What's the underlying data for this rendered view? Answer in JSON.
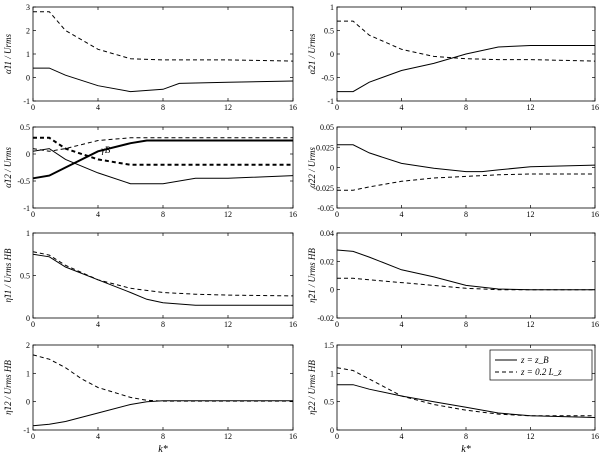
{
  "legend": {
    "entries": [
      {
        "label": "z = z_B",
        "style": "solid"
      },
      {
        "label": "z = 0.2 L_z",
        "style": "dashed"
      }
    ]
  },
  "chart_data": [
    {
      "type": "line",
      "ylabel": "α̃11 / Urms",
      "xlim": [
        0,
        16
      ],
      "ylim": [
        -1,
        3
      ],
      "xticks": [
        0,
        4,
        8,
        12,
        16
      ],
      "yticks": [
        -1,
        0,
        1,
        2,
        3
      ],
      "series": [
        {
          "style": "solid",
          "width": 1,
          "x": [
            0,
            1,
            2,
            4,
            6,
            8,
            9,
            12,
            16
          ],
          "y": [
            0.4,
            0.4,
            0.1,
            -0.35,
            -0.6,
            -0.5,
            -0.25,
            -0.2,
            -0.15
          ]
        },
        {
          "style": "dashed",
          "width": 1,
          "x": [
            0,
            1,
            2,
            4,
            6,
            8,
            10,
            12,
            16
          ],
          "y": [
            2.8,
            2.8,
            2.0,
            1.2,
            0.8,
            0.75,
            0.75,
            0.75,
            0.7
          ]
        }
      ]
    },
    {
      "type": "line",
      "ylabel": "α̃21 / Urms",
      "xlim": [
        0,
        16
      ],
      "ylim": [
        -1,
        1
      ],
      "xticks": [
        0,
        4,
        8,
        12,
        16
      ],
      "yticks": [
        -1,
        -0.5,
        0,
        0.5,
        1
      ],
      "series": [
        {
          "style": "solid",
          "width": 1,
          "x": [
            0,
            1,
            2,
            4,
            6,
            8,
            10,
            12,
            16
          ],
          "y": [
            -0.8,
            -0.8,
            -0.6,
            -0.35,
            -0.2,
            0.0,
            0.15,
            0.18,
            0.18
          ]
        },
        {
          "style": "dashed",
          "width": 1,
          "x": [
            0,
            1,
            2,
            4,
            6,
            8,
            10,
            12,
            16
          ],
          "y": [
            0.7,
            0.7,
            0.4,
            0.1,
            -0.05,
            -0.1,
            -0.12,
            -0.12,
            -0.15
          ]
        }
      ]
    },
    {
      "type": "line",
      "ylabel": "α̃12 / Urms",
      "xlim": [
        0,
        16
      ],
      "ylim": [
        -1,
        0.5
      ],
      "xticks": [
        0,
        4,
        8,
        12,
        16
      ],
      "yticks": [
        -1,
        -0.5,
        0,
        0.5
      ],
      "annotations": [
        {
          "text": "γ̃B",
          "x": 4.2,
          "y": 0.02
        }
      ],
      "series": [
        {
          "style": "solid",
          "width": 1,
          "x": [
            0,
            1,
            2,
            4,
            6,
            8,
            10,
            12,
            16
          ],
          "y": [
            0.05,
            0.1,
            -0.1,
            -0.35,
            -0.55,
            -0.55,
            -0.45,
            -0.45,
            -0.4
          ]
        },
        {
          "style": "dashed",
          "width": 1,
          "x": [
            0,
            1,
            2,
            4,
            6,
            8,
            10,
            12,
            16
          ],
          "y": [
            0.1,
            0.05,
            0.1,
            0.25,
            0.3,
            0.3,
            0.3,
            0.3,
            0.3
          ]
        },
        {
          "style": "solid",
          "width": 2,
          "x": [
            0,
            1,
            2,
            4,
            6,
            7,
            8,
            10,
            12,
            16
          ],
          "y": [
            -0.45,
            -0.4,
            -0.25,
            0.05,
            0.2,
            0.25,
            0.25,
            0.25,
            0.25,
            0.25
          ]
        },
        {
          "style": "dashed",
          "width": 2,
          "x": [
            0,
            1,
            2,
            4,
            6,
            8,
            10,
            12,
            16
          ],
          "y": [
            0.3,
            0.3,
            0.1,
            -0.1,
            -0.2,
            -0.2,
            -0.2,
            -0.2,
            -0.2
          ]
        }
      ]
    },
    {
      "type": "line",
      "ylabel": "α̃22 / Urms",
      "xlim": [
        0,
        16
      ],
      "ylim": [
        -0.05,
        0.05
      ],
      "xticks": [
        0,
        4,
        8,
        12,
        16
      ],
      "yticks": [
        -0.05,
        -0.025,
        0,
        0.025,
        0.05
      ],
      "series": [
        {
          "style": "solid",
          "width": 1,
          "x": [
            0,
            1,
            2,
            4,
            6,
            8,
            9,
            10,
            12,
            16
          ],
          "y": [
            0.028,
            0.028,
            0.018,
            0.005,
            -0.001,
            -0.005,
            -0.005,
            -0.003,
            0.001,
            0.003
          ]
        },
        {
          "style": "dashed",
          "width": 1,
          "x": [
            0,
            1,
            2,
            4,
            6,
            8,
            10,
            12,
            16
          ],
          "y": [
            -0.028,
            -0.028,
            -0.024,
            -0.017,
            -0.013,
            -0.011,
            -0.009,
            -0.008,
            -0.008
          ]
        }
      ]
    },
    {
      "type": "line",
      "ylabel": "η̃11 / Urms HB",
      "xlim": [
        0,
        16
      ],
      "ylim": [
        0,
        1
      ],
      "xticks": [
        0,
        4,
        8,
        12,
        16
      ],
      "yticks": [
        0,
        0.5,
        1
      ],
      "series": [
        {
          "style": "solid",
          "width": 1,
          "x": [
            0,
            1,
            2,
            4,
            6,
            7,
            8,
            10,
            12,
            16
          ],
          "y": [
            0.75,
            0.72,
            0.6,
            0.45,
            0.3,
            0.22,
            0.18,
            0.15,
            0.15,
            0.15
          ]
        },
        {
          "style": "dashed",
          "width": 1,
          "x": [
            0,
            1,
            2,
            4,
            6,
            8,
            10,
            12,
            16
          ],
          "y": [
            0.78,
            0.74,
            0.62,
            0.45,
            0.35,
            0.3,
            0.28,
            0.27,
            0.26
          ]
        }
      ]
    },
    {
      "type": "line",
      "ylabel": "η̃21 / Urms HB",
      "xlim": [
        0,
        16
      ],
      "ylim": [
        -0.02,
        0.04
      ],
      "xticks": [
        0,
        4,
        8,
        12,
        16
      ],
      "yticks": [
        -0.02,
        0,
        0.02,
        0.04
      ],
      "series": [
        {
          "style": "solid",
          "width": 1,
          "x": [
            0,
            1,
            2,
            4,
            6,
            8,
            10,
            12,
            16
          ],
          "y": [
            0.028,
            0.027,
            0.023,
            0.014,
            0.009,
            0.003,
            0.0005,
            0.0,
            0.0
          ]
        },
        {
          "style": "dashed",
          "width": 1,
          "x": [
            0,
            1,
            2,
            4,
            6,
            8,
            10,
            12,
            16
          ],
          "y": [
            0.008,
            0.008,
            0.007,
            0.005,
            0.003,
            0.001,
            0.0,
            0.0,
            0.0
          ]
        }
      ]
    },
    {
      "type": "line",
      "ylabel": "η̃12 / Urms HB",
      "xlabel": "k*",
      "xlim": [
        0,
        16
      ],
      "ylim": [
        -1,
        2
      ],
      "xticks": [
        0,
        4,
        8,
        12,
        16
      ],
      "yticks": [
        -1,
        0,
        1,
        2
      ],
      "series": [
        {
          "style": "solid",
          "width": 1,
          "x": [
            0,
            1,
            2,
            4,
            6,
            7,
            8,
            10,
            12,
            16
          ],
          "y": [
            -0.85,
            -0.8,
            -0.7,
            -0.4,
            -0.1,
            0.0,
            0.03,
            0.03,
            0.03,
            0.03
          ]
        },
        {
          "style": "dashed",
          "width": 1,
          "x": [
            0,
            1,
            2,
            3,
            4,
            6,
            7,
            8,
            12,
            16
          ],
          "y": [
            1.65,
            1.5,
            1.2,
            0.8,
            0.5,
            0.15,
            0.05,
            0.02,
            0.02,
            0.02
          ]
        }
      ]
    },
    {
      "type": "line",
      "ylabel": "η̃22 / Urms HB",
      "xlabel": "k*",
      "xlim": [
        0,
        16
      ],
      "ylim": [
        0,
        1.5
      ],
      "xticks": [
        0,
        4,
        8,
        12,
        16
      ],
      "yticks": [
        0,
        0.5,
        1,
        1.5
      ],
      "series": [
        {
          "style": "solid",
          "width": 1,
          "x": [
            0,
            1,
            2,
            4,
            6,
            8,
            10,
            12,
            16
          ],
          "y": [
            0.8,
            0.8,
            0.72,
            0.6,
            0.5,
            0.4,
            0.3,
            0.25,
            0.22
          ]
        },
        {
          "style": "dashed",
          "width": 1,
          "x": [
            0,
            1,
            2,
            4,
            6,
            8,
            10,
            12,
            16
          ],
          "y": [
            1.1,
            1.05,
            0.9,
            0.6,
            0.45,
            0.35,
            0.28,
            0.25,
            0.25
          ]
        }
      ]
    }
  ]
}
